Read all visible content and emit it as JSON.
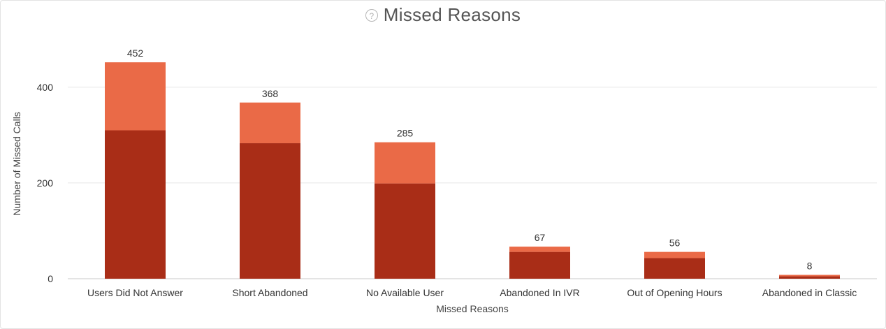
{
  "chart_data": {
    "type": "bar",
    "stacked": true,
    "title": "Missed Reasons",
    "xlabel": "Missed Reasons",
    "ylabel": "Number of Missed Calls",
    "categories": [
      "Users Did Not Answer",
      "Short Abandoned",
      "No Available User",
      "Abandoned In IVR",
      "Out of Opening Hours",
      "Abandoned in Classic"
    ],
    "series": [
      {
        "values": [
          310,
          283,
          199,
          56,
          43,
          5
        ],
        "color": "#a92d17"
      },
      {
        "values": [
          142,
          85,
          86,
          11,
          13,
          3
        ],
        "color": "#ea6a47"
      }
    ],
    "totals": [
      452,
      368,
      285,
      67,
      56,
      8
    ],
    "ylim": [
      0,
      480
    ],
    "yticks": [
      0,
      200,
      400
    ],
    "grid": true
  }
}
